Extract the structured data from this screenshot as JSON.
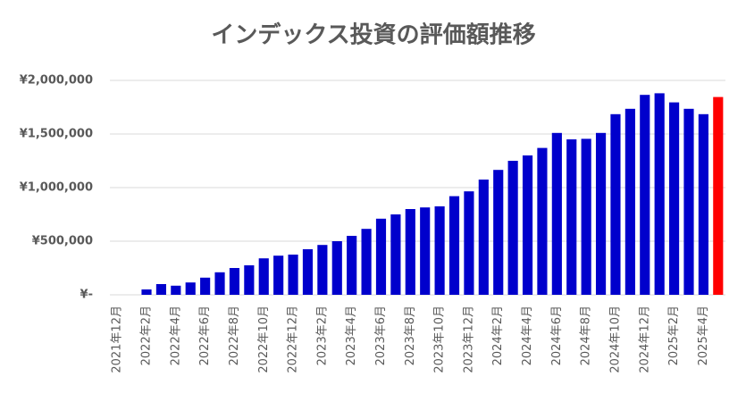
{
  "chart_data": {
    "type": "bar",
    "title": "インデックス投資の評価額推移",
    "categories": [
      "2021年12月",
      null,
      "2022年2月",
      null,
      "2022年4月",
      null,
      "2022年6月",
      null,
      "2022年8月",
      null,
      "2022年10月",
      null,
      "2022年12月",
      null,
      "2023年2月",
      null,
      "2023年4月",
      null,
      "2023年6月",
      null,
      "2023年8月",
      null,
      "2023年10月",
      null,
      "2023年12月",
      null,
      "2024年2月",
      null,
      "2024年4月",
      null,
      "2024年6月",
      null,
      "2024年8月",
      null,
      "2024年10月",
      null,
      "2024年12月",
      null,
      "2025年2月",
      null,
      "2025年4月",
      null
    ],
    "values": [
      0,
      0,
      50000,
      100000,
      85000,
      115000,
      160000,
      210000,
      250000,
      275000,
      340000,
      365000,
      375000,
      425000,
      465000,
      500000,
      550000,
      615000,
      710000,
      750000,
      800000,
      815000,
      825000,
      920000,
      965000,
      1075000,
      1165000,
      1250000,
      1300000,
      1370000,
      1510000,
      1450000,
      1455000,
      1510000,
      1685000,
      1735000,
      1865000,
      1880000,
      1795000,
      1735000,
      1685000,
      1845000
    ],
    "colors": [
      "#0000cc",
      "#0000cc",
      "#0000cc",
      "#0000cc",
      "#0000cc",
      "#0000cc",
      "#0000cc",
      "#0000cc",
      "#0000cc",
      "#0000cc",
      "#0000cc",
      "#0000cc",
      "#0000cc",
      "#0000cc",
      "#0000cc",
      "#0000cc",
      "#0000cc",
      "#0000cc",
      "#0000cc",
      "#0000cc",
      "#0000cc",
      "#0000cc",
      "#0000cc",
      "#0000cc",
      "#0000cc",
      "#0000cc",
      "#0000cc",
      "#0000cc",
      "#0000cc",
      "#0000cc",
      "#0000cc",
      "#0000cc",
      "#0000cc",
      "#0000cc",
      "#0000cc",
      "#0000cc",
      "#0000cc",
      "#0000cc",
      "#0000cc",
      "#0000cc",
      "#0000cc",
      "#ff0000"
    ],
    "ylim": [
      0,
      2000000
    ],
    "yticks": [
      {
        "value": 0,
        "label": "¥-"
      },
      {
        "value": 500000,
        "label": "¥500,000"
      },
      {
        "value": 1000000,
        "label": "¥1,000,000"
      },
      {
        "value": 1500000,
        "label": "¥1,500,000"
      },
      {
        "value": 2000000,
        "label": "¥2,000,000"
      }
    ],
    "grid": true
  }
}
